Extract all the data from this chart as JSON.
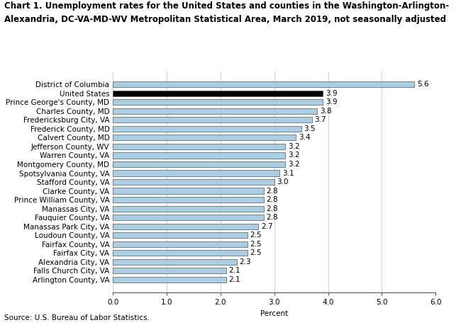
{
  "title_line1": "Chart 1. Unemployment rates for the United States and counties in the Washington-Arlington-",
  "title_line2": "Alexandria, DC-VA-MD-WV Metropolitan Statistical Area, March 2019, not seasonally adjusted",
  "categories": [
    "District of Columbia",
    "United States",
    "Prince George's County, MD",
    "Charles County, MD",
    "Fredericksburg City, VA",
    "Frederick County, MD",
    "Calvert County, MD",
    "Jefferson County, WV",
    "Warren County, VA",
    "Montgomery County, MD",
    "Spotsylvania County, VA",
    "Stafford County, VA",
    "Clarke County, VA",
    "Prince William County, VA",
    "Manassas City, VA",
    "Fauquier County, VA",
    "Manassas Park City, VA",
    "Loudoun County, VA",
    "Fairfax County, VA",
    "Fairfax City, VA",
    "Alexandria City, VA",
    "Falls Church City, VA",
    "Arlington County, VA"
  ],
  "values": [
    5.6,
    3.9,
    3.9,
    3.8,
    3.7,
    3.5,
    3.4,
    3.2,
    3.2,
    3.2,
    3.1,
    3.0,
    2.8,
    2.8,
    2.8,
    2.8,
    2.7,
    2.5,
    2.5,
    2.5,
    2.3,
    2.1,
    2.1
  ],
  "bar_colors": [
    "#aacfe4",
    "#000000",
    "#aacfe4",
    "#aacfe4",
    "#aacfe4",
    "#aacfe4",
    "#aacfe4",
    "#aacfe4",
    "#aacfe4",
    "#aacfe4",
    "#aacfe4",
    "#aacfe4",
    "#aacfe4",
    "#aacfe4",
    "#aacfe4",
    "#aacfe4",
    "#aacfe4",
    "#aacfe4",
    "#aacfe4",
    "#aacfe4",
    "#aacfe4",
    "#aacfe4",
    "#aacfe4"
  ],
  "xlabel": "Percent",
  "xlim": [
    0,
    6.0
  ],
  "xticks": [
    0.0,
    1.0,
    2.0,
    3.0,
    4.0,
    5.0,
    6.0
  ],
  "xtick_labels": [
    "0.0",
    "1.0",
    "2.0",
    "3.0",
    "4.0",
    "5.0",
    "6.0"
  ],
  "source": "Source: U.S. Bureau of Labor Statistics.",
  "label_fontsize": 7.5,
  "tick_fontsize": 7.5,
  "value_fontsize": 7.5,
  "title_fontsize": 8.5,
  "source_fontsize": 7.5,
  "bar_edge_color": "#555555",
  "bar_linewidth": 0.5,
  "bar_height": 0.65
}
